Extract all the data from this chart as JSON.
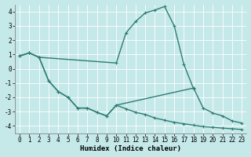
{
  "xlabel": "Humidex (Indice chaleur)",
  "bg_color": "#c5e8e8",
  "line_color": "#2e7d72",
  "grid_color": "#ffffff",
  "xlim": [
    -0.5,
    23.5
  ],
  "ylim": [
    -4.5,
    4.5
  ],
  "yticks": [
    -4,
    -3,
    -2,
    -1,
    0,
    1,
    2,
    3,
    4
  ],
  "xticks": [
    0,
    1,
    2,
    3,
    4,
    5,
    6,
    7,
    8,
    9,
    10,
    11,
    12,
    13,
    14,
    15,
    16,
    17,
    18,
    19,
    20,
    21,
    22,
    23
  ],
  "line1_x": [
    0,
    1,
    2,
    10,
    11,
    12,
    13,
    14,
    15,
    16,
    17,
    18
  ],
  "line1_y": [
    0.9,
    1.1,
    0.8,
    0.4,
    2.5,
    3.3,
    3.9,
    4.1,
    4.35,
    3.0,
    0.3,
    -1.4
  ],
  "line2_x": [
    0,
    1,
    2,
    3,
    4,
    5,
    6,
    7,
    8,
    9,
    10,
    18,
    19,
    20,
    21,
    22,
    23
  ],
  "line2_y": [
    0.9,
    1.1,
    0.8,
    -0.85,
    -1.6,
    -2.0,
    -2.75,
    -2.75,
    -3.05,
    -3.3,
    -2.55,
    -1.35,
    -2.75,
    -3.1,
    -3.3,
    -3.65,
    -3.8
  ],
  "line3_x": [
    0,
    1,
    2,
    3,
    4,
    5,
    6,
    7,
    8,
    9,
    10,
    11,
    12,
    13,
    14,
    15,
    16,
    17,
    18,
    19,
    20,
    21,
    22,
    23
  ],
  "line3_y": [
    0.9,
    1.1,
    0.8,
    -0.85,
    -1.6,
    -2.0,
    -2.75,
    -2.75,
    -3.05,
    -3.3,
    -2.55,
    -2.8,
    -3.05,
    -3.2,
    -3.45,
    -3.6,
    -3.75,
    -3.85,
    -3.95,
    -4.05,
    -4.1,
    -4.15,
    -4.2,
    -4.25
  ],
  "marker_size": 3.0,
  "linewidth": 1.0,
  "tick_fontsize": 5.5,
  "label_fontsize": 6.5
}
